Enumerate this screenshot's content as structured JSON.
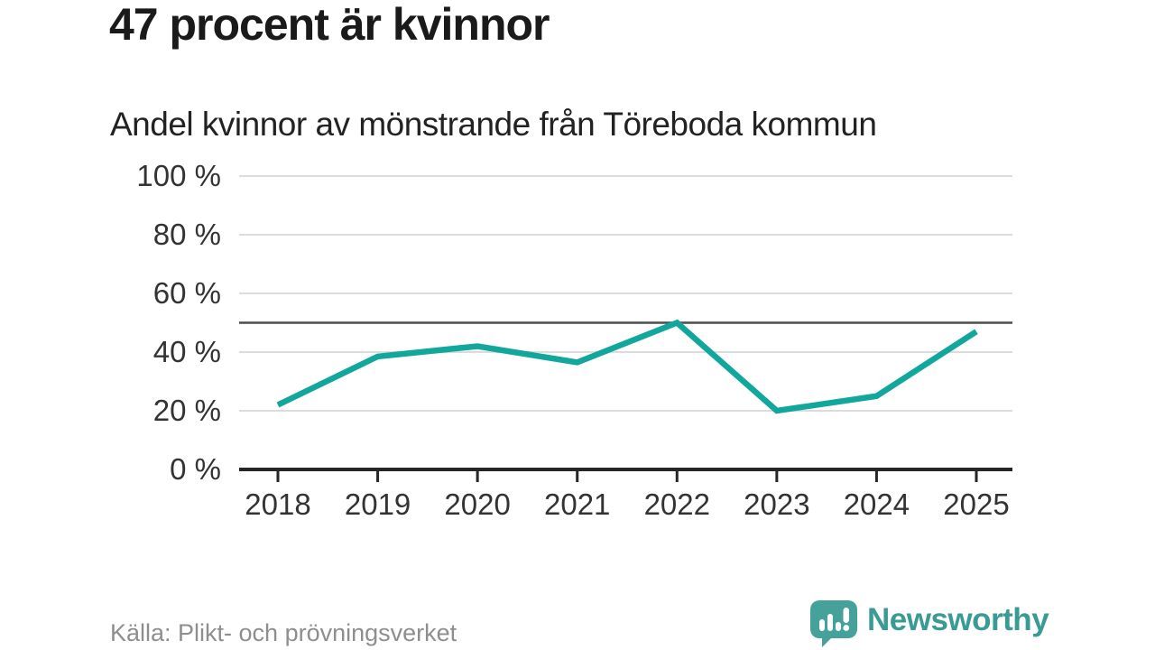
{
  "header": {
    "title": "47 procent är kvinnor",
    "subtitle": "Andel kvinnor av mönstrande från Töreboda kommun"
  },
  "chart_data": {
    "type": "line",
    "x": [
      "2018",
      "2019",
      "2020",
      "2021",
      "2022",
      "2023",
      "2024",
      "2025"
    ],
    "series": [
      {
        "name": "Andel kvinnor av mönstrande",
        "values": [
          22,
          38.5,
          42,
          36.5,
          50,
          20,
          25,
          47
        ]
      }
    ],
    "title": "Andel kvinnor av mönstrande från Töreboda kommun",
    "xlabel": "",
    "ylabel": "",
    "ylim": [
      0,
      100
    ],
    "y_tick_values": [
      0,
      20,
      40,
      60,
      80,
      100
    ],
    "y_tick_labels": [
      "0 %",
      "20 %",
      "40 %",
      "60 %",
      "80 %",
      "100 %"
    ],
    "reference_line": 50,
    "grid": "horizontal",
    "legend": "none",
    "colors": {
      "line": "#12a79c",
      "grid": "#dcdcdc",
      "reference_line": "#4d4d4d",
      "axis": "#262626",
      "labels": "#333333"
    }
  },
  "footer": {
    "source": "Källa: Plikt- och prövningsverket",
    "brand": {
      "name": "Newsworthy",
      "icon": "speech-bubble-bar-chart-icon",
      "color": "#3a9b94",
      "icon_color": "#44a29b"
    }
  }
}
